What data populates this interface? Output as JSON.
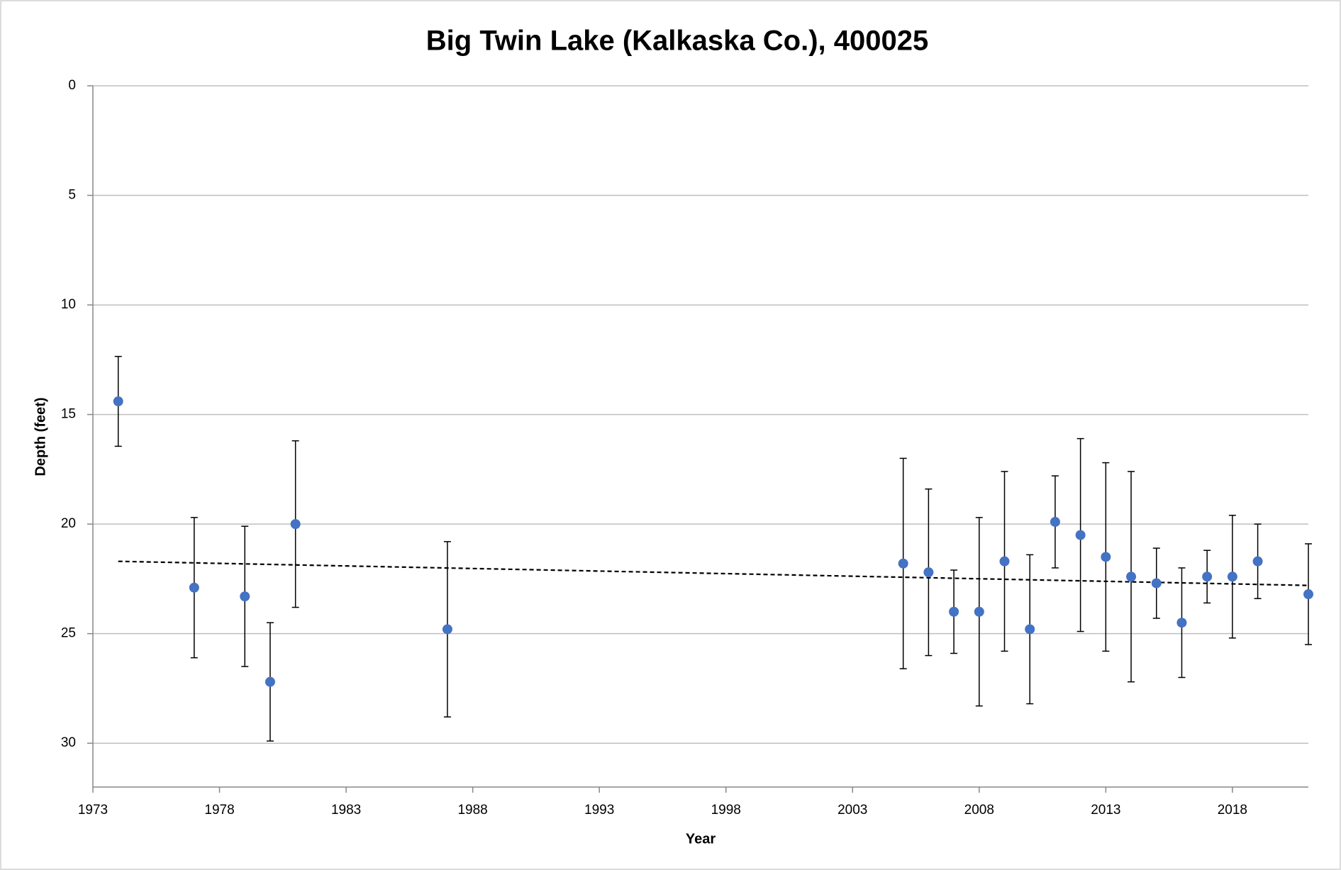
{
  "chart_data": {
    "type": "scatter",
    "title": "Big Twin Lake (Kalkaska Co.), 400025",
    "x_label": "Year",
    "y_label": "Depth (feet)",
    "xlim": [
      1973,
      2021
    ],
    "xticks": [
      1973,
      1978,
      1983,
      1988,
      1993,
      1998,
      2003,
      2008,
      2013,
      2018
    ],
    "ylim": [
      0,
      32
    ],
    "yticks": [
      0,
      5,
      10,
      15,
      20,
      25,
      30
    ],
    "y_inverted": true,
    "grid": true,
    "color": "#4472c4",
    "error_color": "#000000",
    "x": [
      1974,
      1977,
      1979,
      1980,
      1981,
      1987,
      2005,
      2006,
      2007,
      2008,
      2009,
      2010,
      2011,
      2012,
      2013,
      2014,
      2015,
      2016,
      2017,
      2018,
      2019,
      2021
    ],
    "values": [
      14.4,
      22.9,
      23.3,
      27.2,
      20.0,
      24.8,
      21.8,
      22.2,
      24.0,
      24.0,
      21.7,
      24.8,
      19.9,
      20.5,
      21.5,
      22.4,
      22.7,
      24.5,
      22.4,
      22.4,
      21.7,
      23.2
    ],
    "errors": [
      2.05,
      3.2,
      3.2,
      2.7,
      3.8,
      4.0,
      4.8,
      3.8,
      1.9,
      4.3,
      4.1,
      3.4,
      2.1,
      4.4,
      4.3,
      4.8,
      1.6,
      2.5,
      1.2,
      2.8,
      1.7,
      2.3
    ],
    "trendline": {
      "x": [
        1974,
        2021
      ],
      "values": [
        21.7,
        22.8
      ],
      "color": "#000000",
      "dashed": true
    }
  }
}
